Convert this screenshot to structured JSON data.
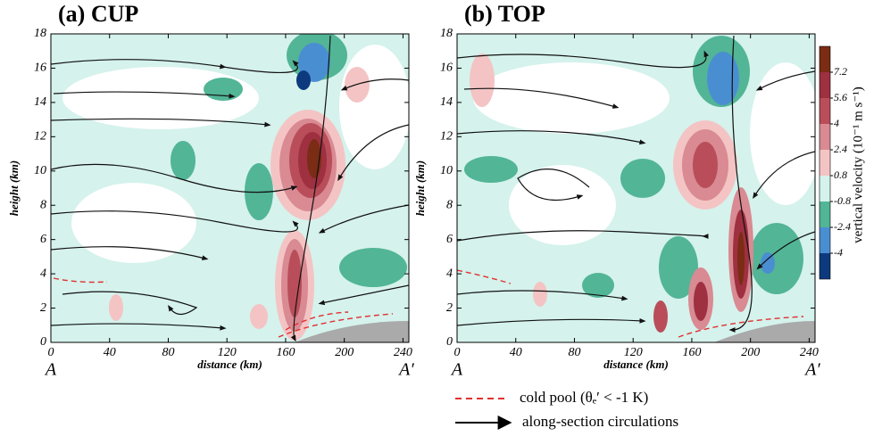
{
  "chart_data": [
    {
      "type": "contour",
      "title": "(a) CUP",
      "xlabel": "distance (km)",
      "ylabel": "height (km)",
      "xlim": [
        0,
        244
      ],
      "xticks": [
        0,
        40,
        80,
        120,
        160,
        200,
        240
      ],
      "ylim": [
        0,
        18
      ],
      "yticks": [
        0,
        2,
        4,
        6,
        8,
        10,
        12,
        14,
        16,
        18
      ],
      "start_label": "A",
      "end_label": "A′"
    },
    {
      "type": "contour",
      "title": "(b) TOP",
      "xlabel": "distance (km)",
      "ylabel": "height (km)",
      "xlim": [
        0,
        244
      ],
      "xticks": [
        0,
        40,
        80,
        120,
        160,
        200,
        240
      ],
      "ylim": [
        0,
        18
      ],
      "yticks": [
        0,
        2,
        4,
        6,
        8,
        10,
        12,
        14,
        16,
        18
      ],
      "start_label": "A",
      "end_label": "A′"
    }
  ],
  "colorbar": {
    "label": "vertical velocity (10⁻¹ m s⁻¹)",
    "ticks": [
      7.2,
      5.6,
      4,
      2.4,
      0.8,
      -0.8,
      -2.4,
      -4
    ],
    "colors": [
      "#7b2c14",
      "#9e3040",
      "#b94e5a",
      "#d98a92",
      "#f4c4c4",
      "#d5f2ec",
      "#52b596",
      "#4a8ed2",
      "#0d3a7e"
    ]
  },
  "legend": [
    {
      "label": "cold pool (θₑ′ < -1 K)",
      "style": "dashed",
      "color": "#e03030"
    },
    {
      "label": "along-section circulations",
      "style": "arrow",
      "color": "#000000"
    }
  ]
}
